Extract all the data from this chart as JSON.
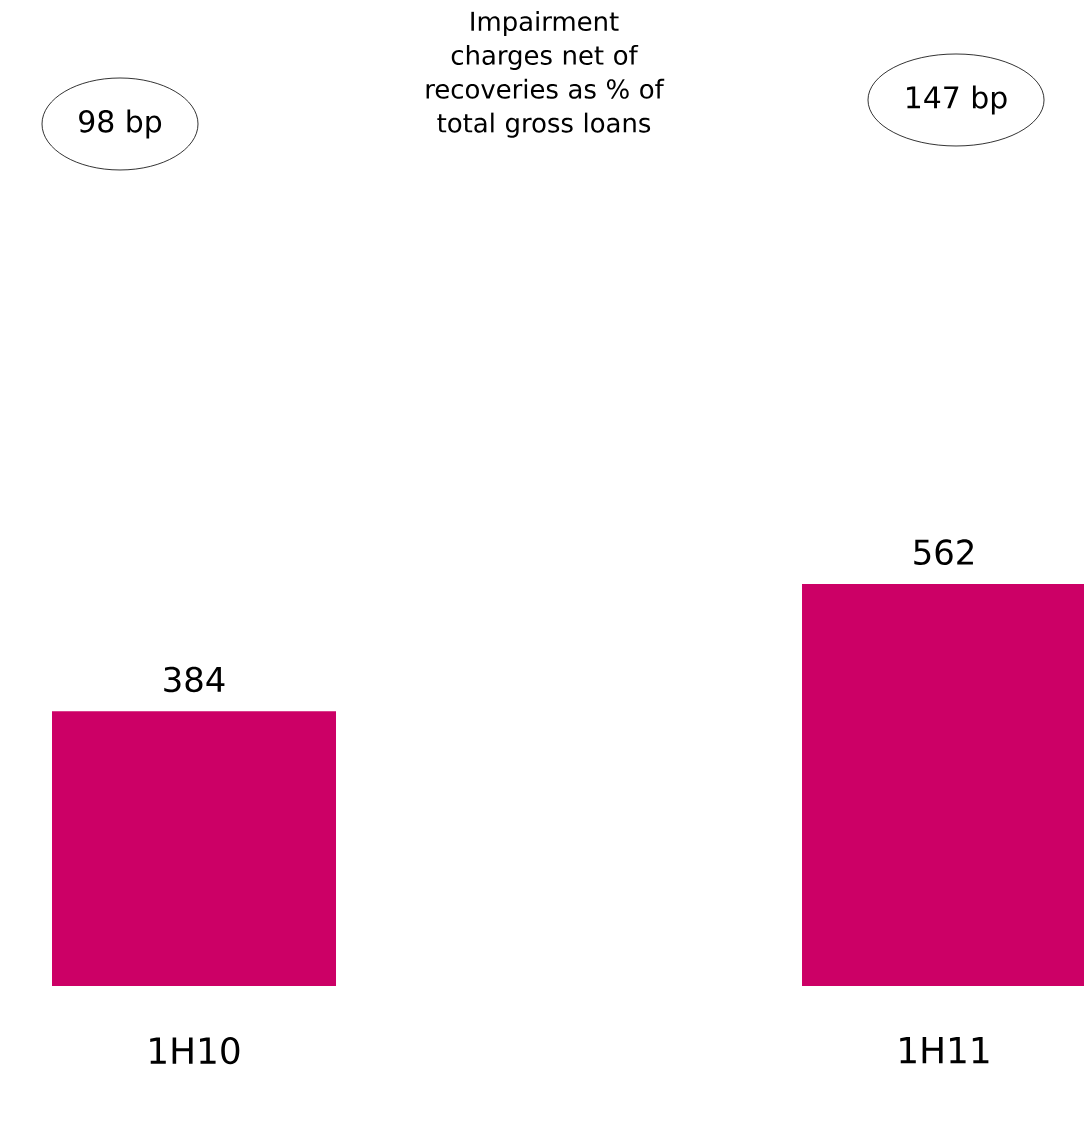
{
  "chart_data": {
    "type": "bar",
    "title": "Impairment charges net of recoveries as % of total gross loans",
    "categories": [
      "1H10",
      "1H11"
    ],
    "values": [
      384,
      562
    ],
    "color": "#cc0066",
    "data_labels": true,
    "annotations": [
      "98 bp",
      "147 bp"
    ]
  }
}
